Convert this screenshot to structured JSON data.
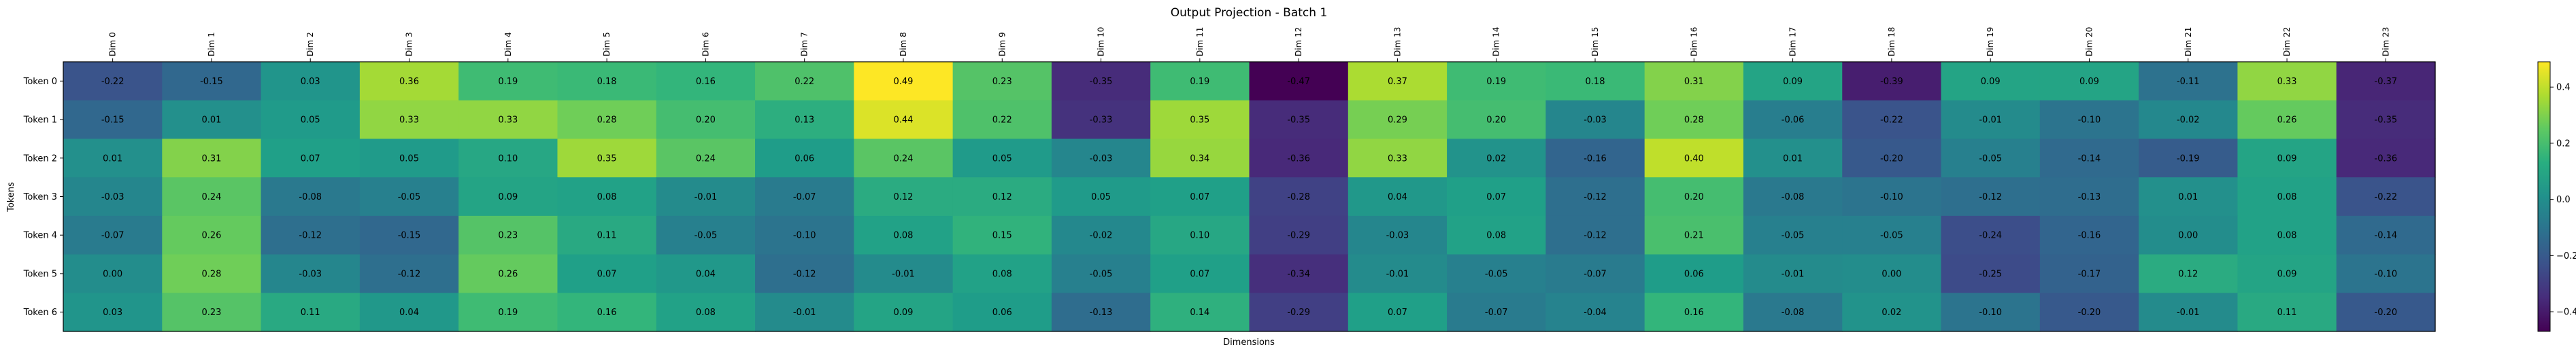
{
  "chart_data": {
    "type": "heatmap",
    "title": "Output Projection - Batch 1",
    "xlabel": "Dimensions",
    "ylabel": "Tokens",
    "x_labels": [
      "Dim 0",
      "Dim 1",
      "Dim 2",
      "Dim 3",
      "Dim 4",
      "Dim 5",
      "Dim 6",
      "Dim 7",
      "Dim 8",
      "Dim 9",
      "Dim 10",
      "Dim 11",
      "Dim 12",
      "Dim 13",
      "Dim 14",
      "Dim 15",
      "Dim 16",
      "Dim 17",
      "Dim 18",
      "Dim 19",
      "Dim 20",
      "Dim 21",
      "Dim 22",
      "Dim 23"
    ],
    "y_labels": [
      "Token 0",
      "Token 1",
      "Token 2",
      "Token 3",
      "Token 4",
      "Token 5",
      "Token 6"
    ],
    "values": [
      [
        -0.22,
        -0.15,
        0.03,
        0.36,
        0.19,
        0.18,
        0.16,
        0.22,
        0.49,
        0.23,
        -0.35,
        0.19,
        -0.47,
        0.37,
        0.19,
        0.18,
        0.31,
        0.09,
        -0.39,
        0.09,
        0.09,
        -0.11,
        0.33,
        -0.37
      ],
      [
        -0.15,
        0.01,
        0.05,
        0.33,
        0.33,
        0.28,
        0.2,
        0.13,
        0.44,
        0.22,
        -0.33,
        0.35,
        -0.35,
        0.29,
        0.2,
        -0.03,
        0.28,
        -0.06,
        -0.22,
        -0.01,
        -0.1,
        -0.02,
        0.26,
        -0.35
      ],
      [
        0.01,
        0.31,
        0.07,
        0.05,
        0.1,
        0.35,
        0.24,
        0.06,
        0.24,
        0.05,
        -0.03,
        0.34,
        -0.36,
        0.33,
        0.02,
        -0.16,
        0.4,
        0.01,
        -0.2,
        -0.05,
        -0.14,
        -0.19,
        0.09,
        -0.36
      ],
      [
        -0.03,
        0.24,
        -0.08,
        -0.05,
        0.09,
        0.08,
        -0.01,
        -0.07,
        0.12,
        0.12,
        0.05,
        0.07,
        -0.28,
        0.04,
        0.07,
        -0.12,
        0.2,
        -0.08,
        -0.1,
        -0.12,
        -0.13,
        0.01,
        0.08,
        -0.22
      ],
      [
        -0.07,
        0.26,
        -0.12,
        -0.15,
        0.23,
        0.11,
        -0.05,
        -0.1,
        0.08,
        0.15,
        -0.02,
        0.1,
        -0.29,
        -0.03,
        0.08,
        -0.12,
        0.21,
        -0.05,
        -0.05,
        -0.24,
        -0.16,
        -0.0,
        0.08,
        -0.14
      ],
      [
        0.0,
        0.28,
        -0.03,
        -0.12,
        0.26,
        0.07,
        0.04,
        -0.12,
        -0.01,
        0.08,
        -0.05,
        0.07,
        -0.34,
        -0.01,
        -0.05,
        -0.07,
        0.06,
        -0.01,
        -0.0,
        -0.25,
        -0.17,
        0.12,
        0.09,
        -0.1
      ],
      [
        0.03,
        0.23,
        0.11,
        0.04,
        0.19,
        0.16,
        0.08,
        -0.01,
        0.09,
        0.06,
        -0.13,
        0.14,
        -0.29,
        0.07,
        -0.07,
        -0.04,
        0.16,
        -0.08,
        0.02,
        -0.1,
        -0.2,
        -0.01,
        0.11,
        -0.2
      ]
    ],
    "colormap": "viridis",
    "vmin": -0.47,
    "vmax": 0.49,
    "colorbar_ticks": [
      0.4,
      0.2,
      0.0,
      -0.2,
      -0.4
    ],
    "colorbar_tick_labels": [
      "0.4",
      "0.2",
      "0.0",
      "−0.2",
      "−0.4"
    ],
    "grid": false
  }
}
